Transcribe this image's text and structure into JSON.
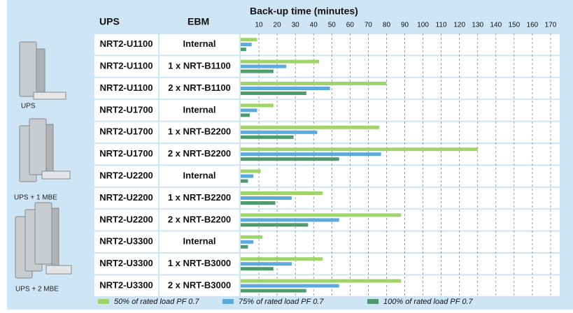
{
  "chart_data": {
    "type": "bar",
    "orientation": "horizontal",
    "title": "Back-up time (minutes)",
    "ups_header": "UPS",
    "ebm_header": "EBM",
    "illustrations": [
      "UPS",
      "UPS + 1 MBE",
      "UPS + 2 MBE"
    ],
    "categories": [
      "NRT2-U1100",
      "NRT2-U1100",
      "NRT2-U1100",
      "NRT2-U1700",
      "NRT2-U1700",
      "NRT2-U1700",
      "NRT2-U2200",
      "NRT2-U2200",
      "NRT2-U2200",
      "NRT2-U3300",
      "NRT2-U3300",
      "NRT2-U3300"
    ],
    "ebm": [
      "Internal",
      "1 x NRT-B1100",
      "2 x NRT-B1100",
      "Internal",
      "1 x NRT-B2200",
      "2 x NRT-B2200",
      "Internal",
      "1 x NRT-B2200",
      "2 x NRT-B2200",
      "Internal",
      "1 x NRT-B3000",
      "2 x NRT-B3000"
    ],
    "series": [
      {
        "name": "50% of rated load PF 0.7",
        "color": "#9fd46b",
        "values": [
          9,
          43,
          80,
          18,
          76,
          130,
          11,
          45,
          88,
          12,
          45,
          88
        ]
      },
      {
        "name": "75% of rated load PF 0.7",
        "color": "#5ba9dd",
        "values": [
          6,
          25,
          49,
          9,
          42,
          77,
          7,
          28,
          54,
          7,
          28,
          54
        ]
      },
      {
        "name": "100% of rated load PF 0.7",
        "color": "#4f9b6b",
        "values": [
          3,
          18,
          36,
          5,
          29,
          54,
          4,
          19,
          37,
          4,
          18,
          36
        ]
      }
    ],
    "xlim": [
      0,
      175
    ],
    "xticks": [
      10,
      20,
      30,
      40,
      50,
      60,
      70,
      80,
      90,
      100,
      110,
      120,
      130,
      140,
      150,
      160,
      170
    ],
    "grid": true
  }
}
